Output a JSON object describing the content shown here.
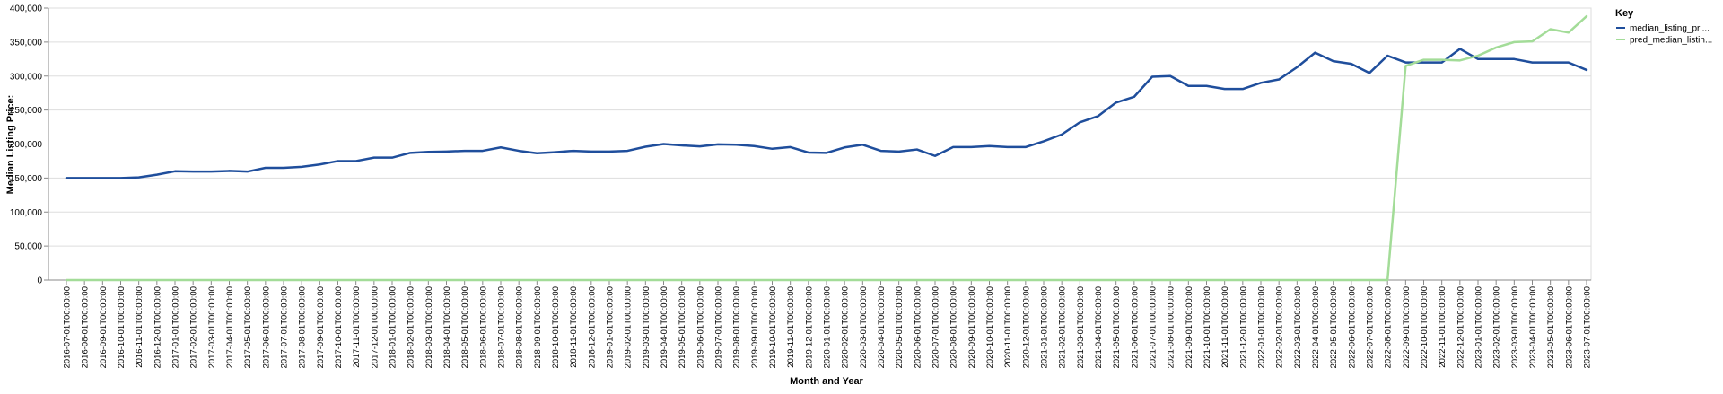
{
  "chart_data": {
    "type": "line",
    "xlabel": "Month and Year",
    "ylabel": "Median Listing Price:",
    "ylim": [
      0,
      400000
    ],
    "yticks": [
      "0",
      "50,000",
      "100,000",
      "150,000",
      "200,000",
      "250,000",
      "300,000",
      "350,000",
      "400,000"
    ],
    "grid": true,
    "legend": {
      "title": "Key",
      "placement": "top-right",
      "entries": [
        {
          "label": "median_listing_pri...",
          "color": "#1f4e9c"
        },
        {
          "label": "pred_median_listin...",
          "color": "#a3dc98"
        }
      ]
    },
    "x": [
      "2016-07-01T00:00:00",
      "2016-08-01T00:00:00",
      "2016-09-01T00:00:00",
      "2016-10-01T00:00:00",
      "2016-11-01T00:00:00",
      "2016-12-01T00:00:00",
      "2017-01-01T00:00:00",
      "2017-02-01T00:00:00",
      "2017-03-01T00:00:00",
      "2017-04-01T00:00:00",
      "2017-05-01T00:00:00",
      "2017-06-01T00:00:00",
      "2017-07-01T00:00:00",
      "2017-08-01T00:00:00",
      "2017-09-01T00:00:00",
      "2017-10-01T00:00:00",
      "2017-11-01T00:00:00",
      "2017-12-01T00:00:00",
      "2018-01-01T00:00:00",
      "2018-02-01T00:00:00",
      "2018-03-01T00:00:00",
      "2018-04-01T00:00:00",
      "2018-05-01T00:00:00",
      "2018-06-01T00:00:00",
      "2018-07-01T00:00:00",
      "2018-08-01T00:00:00",
      "2018-09-01T00:00:00",
      "2018-10-01T00:00:00",
      "2018-11-01T00:00:00",
      "2018-12-01T00:00:00",
      "2019-01-01T00:00:00",
      "2019-02-01T00:00:00",
      "2019-03-01T00:00:00",
      "2019-04-01T00:00:00",
      "2019-05-01T00:00:00",
      "2019-06-01T00:00:00",
      "2019-07-01T00:00:00",
      "2019-08-01T00:00:00",
      "2019-09-01T00:00:00",
      "2019-10-01T00:00:00",
      "2019-11-01T00:00:00",
      "2019-12-01T00:00:00",
      "2020-01-01T00:00:00",
      "2020-02-01T00:00:00",
      "2020-03-01T00:00:00",
      "2020-04-01T00:00:00",
      "2020-05-01T00:00:00",
      "2020-06-01T00:00:00",
      "2020-07-01T00:00:00",
      "2020-08-01T00:00:00",
      "2020-09-01T00:00:00",
      "2020-10-01T00:00:00",
      "2020-11-01T00:00:00",
      "2020-12-01T00:00:00",
      "2021-01-01T00:00:00",
      "2021-02-01T00:00:00",
      "2021-03-01T00:00:00",
      "2021-04-01T00:00:00",
      "2021-05-01T00:00:00",
      "2021-06-01T00:00:00",
      "2021-07-01T00:00:00",
      "2021-08-01T00:00:00",
      "2021-09-01T00:00:00",
      "2021-10-01T00:00:00",
      "2021-11-01T00:00:00",
      "2021-12-01T00:00:00",
      "2022-01-01T00:00:00",
      "2022-02-01T00:00:00",
      "2022-03-01T00:00:00",
      "2022-04-01T00:00:00",
      "2022-05-01T00:00:00",
      "2022-06-01T00:00:00",
      "2022-07-01T00:00:00",
      "2022-08-01T00:00:00",
      "2022-09-01T00:00:00",
      "2022-10-01T00:00:00",
      "2022-11-01T00:00:00",
      "2022-12-01T00:00:00",
      "2023-01-01T00:00:00",
      "2023-02-01T00:00:00",
      "2023-03-01T00:00:00",
      "2023-04-01T00:00:00",
      "2023-05-01T00:00:00",
      "2023-06-01T00:00:00",
      "2023-07-01T00:00:00"
    ],
    "series": [
      {
        "name": "median_listing_pri...",
        "color": "#1f4e9c",
        "values": [
          150000,
          150000,
          150000,
          150000,
          151000,
          155000,
          160000,
          159500,
          159500,
          160500,
          159500,
          165000,
          165000,
          166500,
          170000,
          175000,
          175000,
          180000,
          180000,
          187000,
          188500,
          189000,
          190000,
          190000,
          195000,
          190000,
          186500,
          188000,
          190000,
          189000,
          189000,
          190000,
          196000,
          200000,
          198000,
          196500,
          199500,
          199000,
          197000,
          193000,
          195500,
          187500,
          187000,
          195000,
          199000,
          190000,
          189000,
          192000,
          182500,
          195500,
          195500,
          197000,
          195500,
          195500,
          204000,
          214000,
          232000,
          241000,
          261000,
          269500,
          299000,
          300000,
          285500,
          285500,
          281000,
          281000,
          290000,
          295000,
          313000,
          334500,
          322000,
          318000,
          304500,
          330000,
          320000,
          320000,
          320000,
          340000,
          325000,
          325000,
          325000,
          320000,
          320000,
          320000,
          309000
        ]
      },
      {
        "name": "pred_median_listin...",
        "color": "#a3dc98",
        "values": [
          0,
          0,
          0,
          0,
          0,
          0,
          0,
          0,
          0,
          0,
          0,
          0,
          0,
          0,
          0,
          0,
          0,
          0,
          0,
          0,
          0,
          0,
          0,
          0,
          0,
          0,
          0,
          0,
          0,
          0,
          0,
          0,
          0,
          0,
          0,
          0,
          0,
          0,
          0,
          0,
          0,
          0,
          0,
          0,
          0,
          0,
          0,
          0,
          0,
          0,
          0,
          0,
          0,
          0,
          0,
          0,
          0,
          0,
          0,
          0,
          0,
          0,
          0,
          0,
          0,
          0,
          0,
          0,
          0,
          0,
          0,
          0,
          0,
          0,
          315000,
          324000,
          324000,
          323000,
          330000,
          342000,
          350000,
          351000,
          369000,
          364000,
          388000
        ]
      }
    ]
  }
}
